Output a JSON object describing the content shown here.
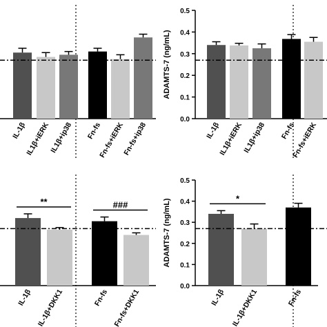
{
  "colors": {
    "dark_gray": "#505050",
    "light_gray": "#c8c8c8",
    "mid_gray": "#787878",
    "black": "#000000"
  },
  "chart_data": [
    {
      "type": "bar",
      "panel": "top-left",
      "ylabel": "",
      "ylim": [
        0,
        0.5
      ],
      "baseline_value": 0.27,
      "categories": [
        "IL-1β",
        "IL1β+iERK",
        "IL1β+ip38",
        "Fn-fs",
        "Fn-fs+iERK",
        "Fn-fs+ip38"
      ],
      "values": [
        0.305,
        0.285,
        0.295,
        0.31,
        0.275,
        0.375
      ],
      "errors": [
        0.02,
        0.02,
        0.015,
        0.015,
        0.02,
        0.015
      ],
      "colors": [
        "#505050",
        "#c8c8c8",
        "#787878",
        "#000000",
        "#c8c8c8",
        "#787878"
      ],
      "annotations": []
    },
    {
      "type": "bar",
      "panel": "top-right",
      "ylabel": "ADAMTS-7 (ng/mL)",
      "ylim": [
        0,
        0.5
      ],
      "yticks": [
        "0.0",
        "0.1",
        "0.2",
        "0.3",
        "0.4",
        "0.5"
      ],
      "baseline_value": 0.27,
      "categories": [
        "IL-1β",
        "IL1β+iERK",
        "IL1β+ip38",
        "Fn-fs",
        "Fn-fs+iERK"
      ],
      "values": [
        0.34,
        0.338,
        0.325,
        0.368,
        0.355
      ],
      "errors": [
        0.015,
        0.01,
        0.02,
        0.02,
        0.02
      ],
      "colors": [
        "#505050",
        "#c8c8c8",
        "#787878",
        "#000000",
        "#c8c8c8"
      ],
      "annotations": []
    },
    {
      "type": "bar",
      "panel": "bottom-left",
      "ylabel": "",
      "ylim": [
        0,
        0.5
      ],
      "baseline_value": 0.27,
      "categories": [
        "IL-1β",
        "IL-1β+DKK1",
        "Fn-fs",
        "Fn-fs+DKK1"
      ],
      "values": [
        0.32,
        0.265,
        0.305,
        0.24
      ],
      "errors": [
        0.02,
        0.01,
        0.02,
        0.01
      ],
      "colors": [
        "#505050",
        "#c8c8c8",
        "#000000",
        "#c8c8c8"
      ],
      "annotations": [
        {
          "text": "**",
          "between": [
            0,
            1
          ]
        },
        {
          "text": "###",
          "between": [
            2,
            3
          ]
        }
      ]
    },
    {
      "type": "bar",
      "panel": "bottom-right",
      "ylabel": "ADAMTS-7 (ng/mL)",
      "ylim": [
        0,
        0.5
      ],
      "yticks": [
        "0.0",
        "0.1",
        "0.2",
        "0.3",
        "0.4",
        "0.5"
      ],
      "baseline_value": 0.27,
      "categories": [
        "IL-1β",
        "IL-1β+DKK1",
        "Fn-fs"
      ],
      "values": [
        0.34,
        0.27,
        0.37
      ],
      "errors": [
        0.015,
        0.022,
        0.02
      ],
      "colors": [
        "#505050",
        "#c8c8c8",
        "#000000"
      ],
      "annotations": [
        {
          "text": "*",
          "between": [
            0,
            1
          ]
        }
      ]
    }
  ]
}
